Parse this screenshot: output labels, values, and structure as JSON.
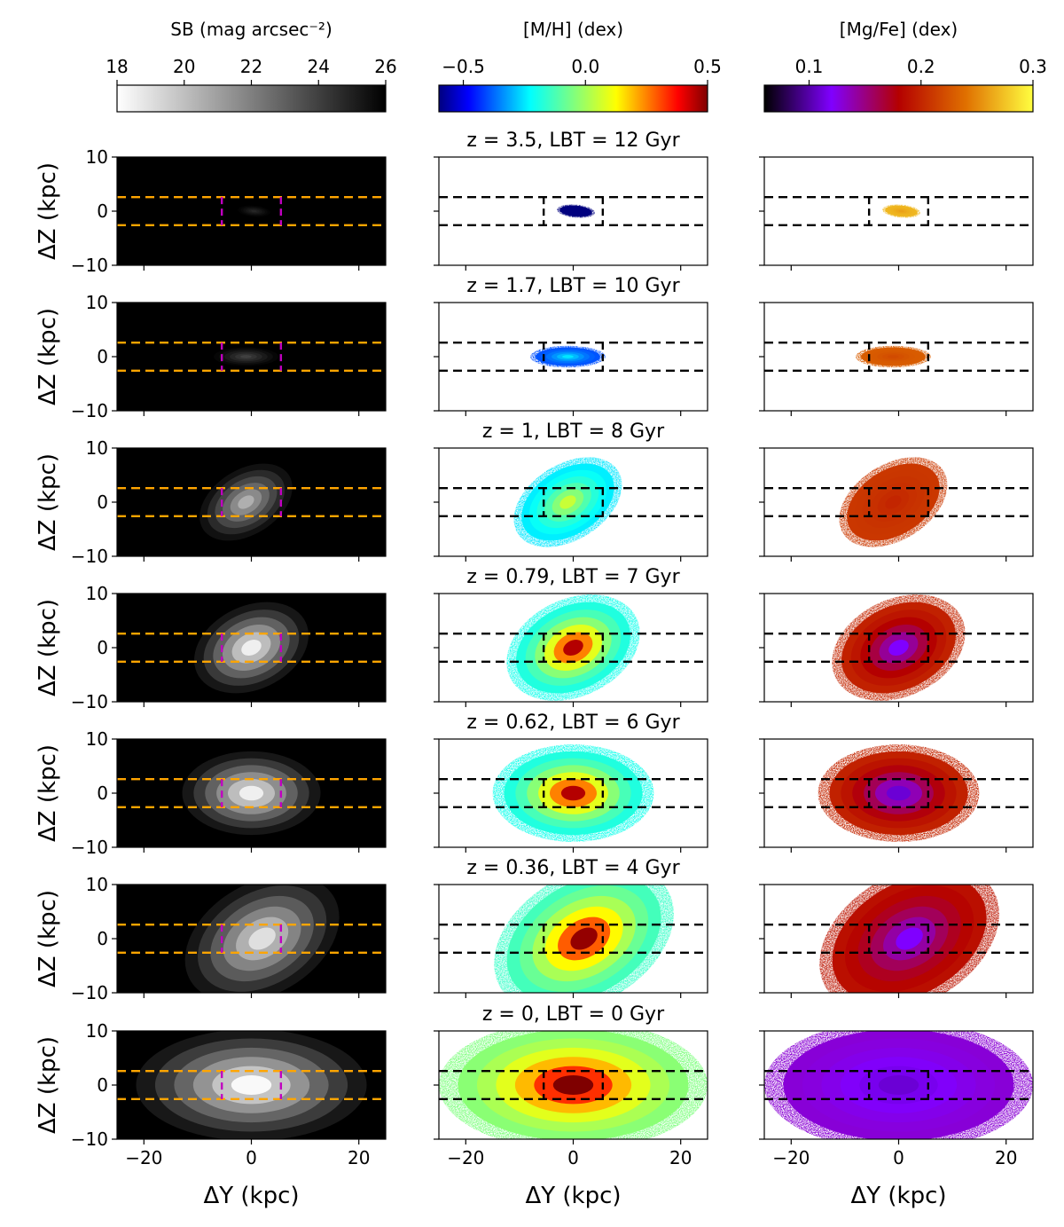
{
  "chart_data": {
    "type": "heatmap",
    "layout": "7 rows x 3 columns of 2D maps (one row per snapshot)",
    "xlabel": "ΔY (kpc)",
    "ylabel": "ΔZ (kpc)",
    "xlim": [
      -25,
      25
    ],
    "ylim": [
      -10,
      10
    ],
    "xticks": [
      "−20",
      "0",
      "20"
    ],
    "yticks": [
      "10",
      "0",
      "−10"
    ],
    "columns": [
      {
        "name": "surface-brightness",
        "colorbar_label": "SB (mag arcsec⁻²)",
        "colormap": "gray_r",
        "range": [
          18,
          26
        ],
        "ticks": [
          "18",
          "20",
          "22",
          "24",
          "26"
        ],
        "tick_values": [
          18,
          20,
          22,
          24,
          26
        ]
      },
      {
        "name": "metallicity",
        "colorbar_label": "[M/H] (dex)",
        "colormap": "jet",
        "range": [
          -0.6,
          0.5
        ],
        "ticks": [
          "−0.5",
          "0.0",
          "0.5"
        ],
        "tick_values": [
          -0.5,
          0.0,
          0.5
        ]
      },
      {
        "name": "mg-fe",
        "colorbar_label": "[Mg/Fe] (dex)",
        "colormap": "gnuplot",
        "range": [
          0.06,
          0.3
        ],
        "ticks": [
          "0.1",
          "0.2",
          "0.3"
        ],
        "tick_values": [
          0.1,
          0.2,
          0.3
        ]
      }
    ],
    "aperture": {
      "z_half_height_kpc": 2.6,
      "y_half_width_kpc": 5.5,
      "sb_line_colors": [
        "#ffa500",
        "#c000c0"
      ],
      "map_line_color": "#000000"
    },
    "snapshots": [
      {
        "title": "z = 3.5, LBT = 12 Gyr",
        "size_y_kpc": 1.2,
        "size_z_kpc": 3.5,
        "tilt_deg": -85,
        "offset_y_kpc": 0.5,
        "sb_peak_mag": 24.8,
        "mh_center": -0.6,
        "mh_outer": -0.6,
        "mgfe_center": 0.26,
        "mgfe_outer": 0.27
      },
      {
        "title": "z = 1.7, LBT = 10 Gyr",
        "size_y_kpc": 7,
        "size_z_kpc": 2.0,
        "tilt_deg": 0,
        "offset_y_kpc": -1,
        "sb_peak_mag": 24.0,
        "mh_center": -0.25,
        "mh_outer": -0.4,
        "mgfe_center": 0.22,
        "mgfe_outer": 0.23
      },
      {
        "title": "z = 1, LBT = 8 Gyr",
        "size_y_kpc": 11,
        "size_z_kpc": 7,
        "tilt_deg": -32,
        "offset_y_kpc": -1,
        "sb_peak_mag": 20.5,
        "mh_center": 0.05,
        "mh_outer": -0.25,
        "mgfe_center": 0.2,
        "mgfe_outer": 0.21
      },
      {
        "title": "z = 0.79, LBT = 7 Gyr",
        "size_y_kpc": 13,
        "size_z_kpc": 9,
        "tilt_deg": -25,
        "offset_y_kpc": 0,
        "sb_peak_mag": 18.5,
        "mh_center": 0.45,
        "mh_outer": -0.2,
        "mgfe_center": 0.12,
        "mgfe_outer": 0.2
      },
      {
        "title": "z = 0.62, LBT = 6 Gyr",
        "size_y_kpc": 15,
        "size_z_kpc": 9,
        "tilt_deg": 0,
        "offset_y_kpc": 0,
        "sb_peak_mag": 18.5,
        "mh_center": 0.45,
        "mh_outer": -0.2,
        "mgfe_center": 0.11,
        "mgfe_outer": 0.2
      },
      {
        "title": "z = 0.36, LBT = 4 Gyr",
        "size_y_kpc": 18,
        "size_z_kpc": 12,
        "tilt_deg": -30,
        "offset_y_kpc": 2,
        "sb_peak_mag": 19.0,
        "mh_center": 0.48,
        "mh_outer": -0.15,
        "mgfe_center": 0.12,
        "mgfe_outer": 0.19
      },
      {
        "title": "z = 0, LBT = 0 Gyr",
        "size_y_kpc": 25,
        "size_z_kpc": 12,
        "tilt_deg": 0,
        "offset_y_kpc": 0,
        "sb_peak_mag": 18.2,
        "mh_center": 0.5,
        "mh_outer": -0.05,
        "mgfe_center": 0.11,
        "mgfe_outer": 0.13
      }
    ]
  }
}
